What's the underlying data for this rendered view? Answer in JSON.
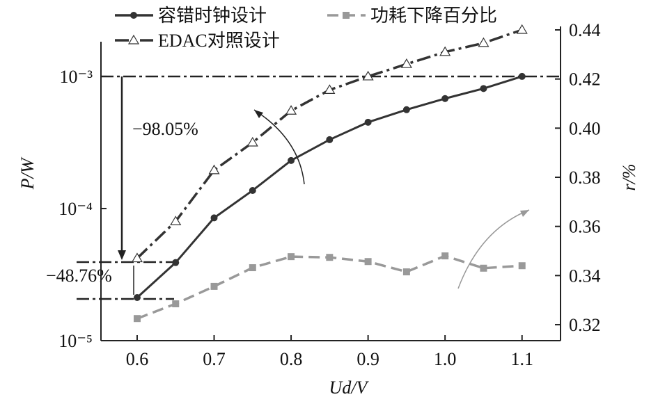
{
  "chart_data": {
    "type": "line",
    "xlabel": "Ud/V",
    "ylabel": "P/W",
    "y2label": "r/%",
    "x": [
      0.6,
      0.65,
      0.7,
      0.75,
      0.8,
      0.85,
      0.9,
      0.95,
      1.0,
      1.05,
      1.1
    ],
    "xlim": [
      0.553,
      1.15
    ],
    "xticks": [
      0.6,
      0.7,
      0.8,
      0.9,
      {
        "value": 1,
        "label": "1.0"
      },
      1.1
    ],
    "ylim": [
      1e-05,
      0.00225
    ],
    "yscale": "log",
    "yticks": [
      {
        "value": 1e-05,
        "label": "10⁻⁵"
      },
      {
        "value": 0.0001,
        "label": "10⁻⁴"
      },
      {
        "value": 0.001,
        "label": "10⁻³"
      }
    ],
    "y2lim": [
      0.3135,
      0.44
    ],
    "y2ticks": [
      0.32,
      0.34,
      0.36,
      0.38,
      {
        "value": 0.4,
        "label": "0.40"
      },
      0.42,
      0.44
    ],
    "series": [
      {
        "name": "容错时钟设计",
        "color": "#333333",
        "dash": "solid",
        "marker": "circle",
        "values": [
          2.12e-05,
          3.9e-05,
          8.5e-05,
          0.000137,
          0.000231,
          0.000332,
          0.00045,
          0.00056,
          0.00068,
          0.00081,
          0.001
        ]
      },
      {
        "name": "功耗下降百分比",
        "color": "#999999",
        "dash": "dash",
        "marker": "square",
        "axis": "y2",
        "values": [
          0.3225,
          0.3285,
          0.3356,
          0.3432,
          0.3477,
          0.3474,
          0.3457,
          0.3415,
          0.348,
          0.343,
          0.344
        ]
      },
      {
        "name": "EDAC对照设计",
        "color": "#333333",
        "dash": "dashdot",
        "marker": "triangle",
        "values": [
          4.2e-05,
          8e-05,
          0.000195,
          0.000316,
          0.00055,
          0.00079,
          0.001,
          0.00124,
          0.00153,
          0.00179,
          0.00225
        ]
      }
    ],
    "annotations": [
      "−98.05%",
      "−48.76%"
    ]
  }
}
